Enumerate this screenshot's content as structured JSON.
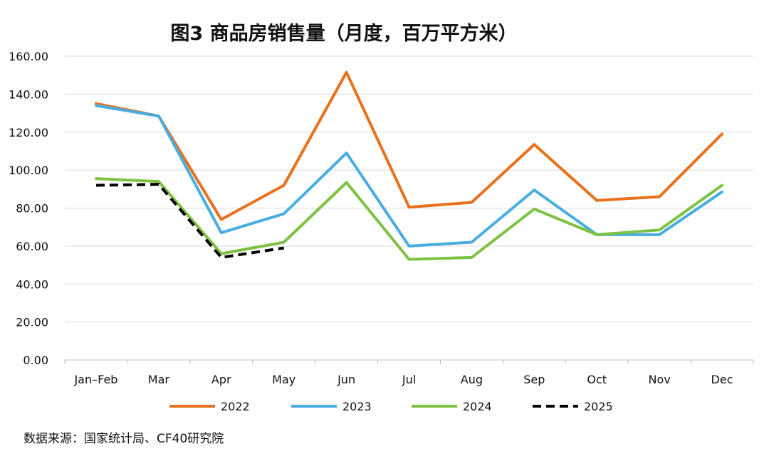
{
  "chart_data": {
    "type": "line",
    "title": "图3 商品房销售量（月度，百万平方米）",
    "categories": [
      "Jan–Feb",
      "Mar",
      "Apr",
      "May",
      "Jun",
      "Jul",
      "Aug",
      "Sep",
      "Oct",
      "Nov",
      "Dec"
    ],
    "ylim": [
      0,
      160
    ],
    "yticks": [
      "0.00",
      "20.00",
      "40.00",
      "60.00",
      "80.00",
      "100.00",
      "120.00",
      "140.00",
      "160.00"
    ],
    "grid": true,
    "legend_position": "bottom",
    "series": [
      {
        "name": "2022",
        "color": "#E8711C",
        "dashed": false,
        "values": [
          135,
          128.5,
          74,
          92,
          151.5,
          80.5,
          83,
          113.5,
          84,
          86,
          119
        ]
      },
      {
        "name": "2023",
        "color": "#48AEE0",
        "dashed": false,
        "values": [
          134,
          128.5,
          67,
          77,
          109,
          60,
          62,
          89.5,
          66,
          66,
          88.5
        ]
      },
      {
        "name": "2024",
        "color": "#7DC242",
        "dashed": false,
        "values": [
          95.5,
          94,
          56,
          62,
          93.5,
          53,
          54,
          79.5,
          66,
          68.5,
          92
        ]
      },
      {
        "name": "2025",
        "color": "#000000",
        "dashed": true,
        "values": [
          92,
          92.5,
          54,
          59,
          null,
          null,
          null,
          null,
          null,
          null,
          null
        ]
      }
    ]
  },
  "source": "数据来源：国家统计局、CF40研究院"
}
